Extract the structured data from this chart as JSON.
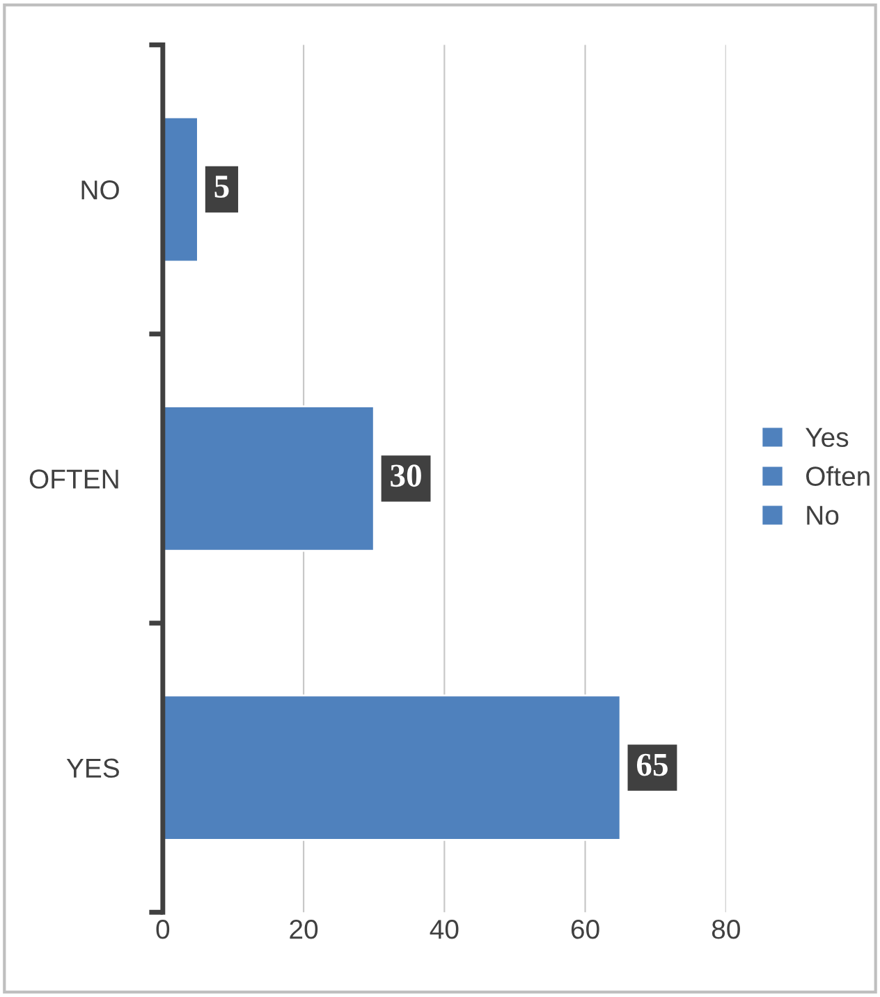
{
  "chart_data": {
    "type": "bar",
    "orientation": "horizontal",
    "categories": [
      "NO",
      "OFTEN",
      "YES"
    ],
    "series": [
      {
        "name": "Yes",
        "color": "#4f81bd",
        "values": [
          null,
          null,
          65
        ]
      },
      {
        "name": "Often",
        "color": "#4f81bd",
        "values": [
          null,
          30,
          null
        ]
      },
      {
        "name": "No",
        "color": "#4f81bd",
        "values": [
          5,
          null,
          null
        ]
      }
    ],
    "xlim": [
      0,
      80
    ],
    "xticks": [
      0,
      20,
      40,
      60,
      80
    ],
    "grid": "x",
    "legend": "right",
    "data_labels": true
  }
}
